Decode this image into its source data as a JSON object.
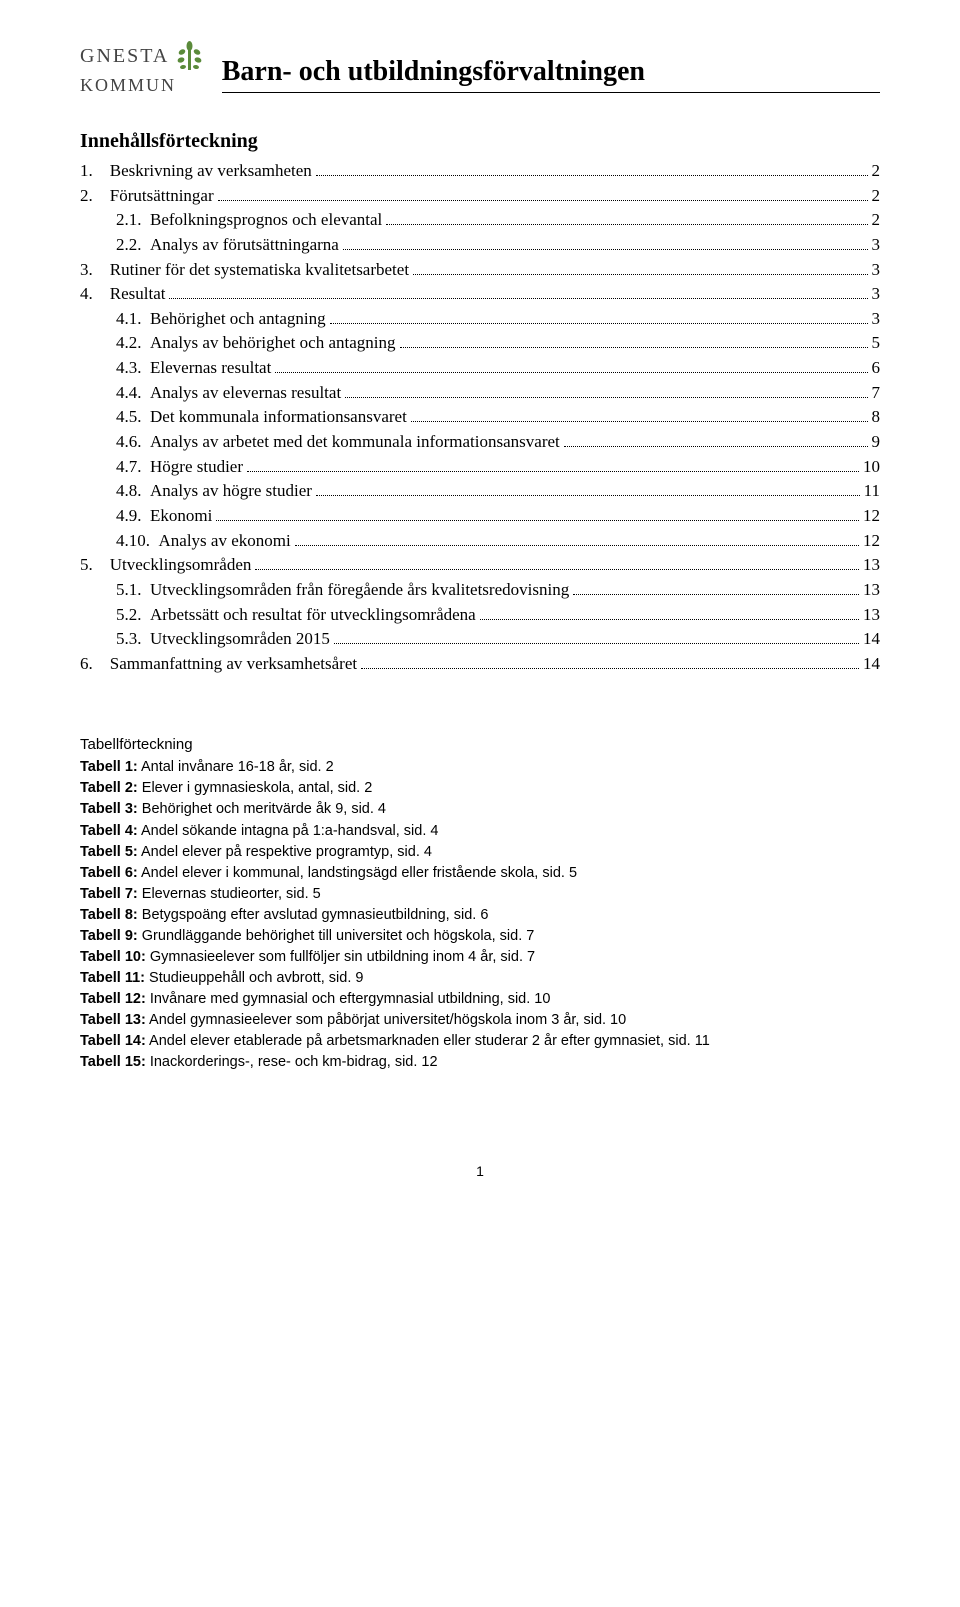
{
  "logo": {
    "line1": "GNESTA",
    "line2": "KOMMUN",
    "leaf_color": "#5a8a3a"
  },
  "header": {
    "title": "Barn- och utbildningsförvaltningen"
  },
  "toc": {
    "heading": "Innehållsförteckning",
    "items": [
      {
        "level": 1,
        "num": "1.",
        "title": "Beskrivning av verksamheten",
        "page": "2"
      },
      {
        "level": 1,
        "num": "2.",
        "title": "Förutsättningar",
        "page": "2"
      },
      {
        "level": 2,
        "num": "2.1.",
        "title": "Befolkningsprognos och elevantal",
        "page": "2"
      },
      {
        "level": 2,
        "num": "2.2.",
        "title": "Analys av förutsättningarna",
        "page": "3"
      },
      {
        "level": 1,
        "num": "3.",
        "title": "Rutiner för det systematiska kvalitetsarbetet",
        "page": "3"
      },
      {
        "level": 1,
        "num": "4.",
        "title": "Resultat",
        "page": "3"
      },
      {
        "level": 2,
        "num": "4.1.",
        "title": "Behörighet och antagning",
        "page": "3"
      },
      {
        "level": 2,
        "num": "4.2.",
        "title": "Analys av behörighet och antagning",
        "page": "5"
      },
      {
        "level": 2,
        "num": "4.3.",
        "title": "Elevernas resultat",
        "page": "6"
      },
      {
        "level": 2,
        "num": "4.4.",
        "title": "Analys av elevernas resultat",
        "page": "7"
      },
      {
        "level": 2,
        "num": "4.5.",
        "title": "Det kommunala informationsansvaret",
        "page": "8"
      },
      {
        "level": 2,
        "num": "4.6.",
        "title": "Analys av arbetet med det kommunala informationsansvaret",
        "page": "9"
      },
      {
        "level": 2,
        "num": "4.7.",
        "title": "Högre studier",
        "page": "10"
      },
      {
        "level": 2,
        "num": "4.8.",
        "title": "Analys av högre studier",
        "page": "11"
      },
      {
        "level": 2,
        "num": "4.9.",
        "title": "Ekonomi",
        "page": "12"
      },
      {
        "level": 2,
        "num": "4.10.",
        "title": "Analys av ekonomi",
        "page": "12"
      },
      {
        "level": 1,
        "num": "5.",
        "title": "Utvecklingsområden",
        "page": "13"
      },
      {
        "level": 2,
        "num": "5.1.",
        "title": "Utvecklingsområden från föregående års kvalitetsredovisning",
        "page": "13"
      },
      {
        "level": 2,
        "num": "5.2.",
        "title": "Arbetssätt och resultat för utvecklingsområdena",
        "page": "13"
      },
      {
        "level": 2,
        "num": "5.3.",
        "title": "Utvecklingsområden 2015",
        "page": "14"
      },
      {
        "level": 1,
        "num": "6.",
        "title": "Sammanfattning av verksamhetsåret",
        "page": "14"
      }
    ]
  },
  "tables": {
    "heading": "Tabellförteckning",
    "items": [
      {
        "label": "Tabell 1:",
        "text": " Antal invånare 16-18 år, sid. 2"
      },
      {
        "label": "Tabell 2:",
        "text": " Elever i gymnasieskola, antal, sid. 2"
      },
      {
        "label": "Tabell 3:",
        "text": " Behörighet och meritvärde åk 9, sid. 4"
      },
      {
        "label": "Tabell 4:",
        "text": " Andel sökande intagna på 1:a-handsval, sid. 4"
      },
      {
        "label": "Tabell 5:",
        "text": " Andel elever på respektive programtyp, sid. 4"
      },
      {
        "label": "Tabell 6:",
        "text": " Andel elever i kommunal, landstingsägd eller fristående skola, sid. 5"
      },
      {
        "label": "Tabell 7:",
        "text": " Elevernas studieorter, sid. 5"
      },
      {
        "label": "Tabell 8:",
        "text": " Betygspoäng efter avslutad gymnasieutbildning, sid. 6"
      },
      {
        "label": "Tabell 9:",
        "text": " Grundläggande behörighet till universitet och högskola, sid. 7"
      },
      {
        "label": "Tabell 10:",
        "text": " Gymnasieelever som fullföljer sin utbildning inom 4 år, sid. 7"
      },
      {
        "label": "Tabell 11:",
        "text": " Studieuppehåll och avbrott, sid. 9"
      },
      {
        "label": "Tabell 12:",
        "text": " Invånare med gymnasial och eftergymnasial utbildning, sid. 10"
      },
      {
        "label": "Tabell 13:",
        "text": " Andel gymnasieelever som påbörjat universitet/högskola inom 3 år, sid. 10"
      },
      {
        "label": "Tabell 14:",
        "text": " Andel elever etablerade på arbetsmarknaden eller studerar 2 år efter gymnasiet, sid. 11"
      },
      {
        "label": "Tabell 15:",
        "text": " Inackorderings-, rese- och km-bidrag, sid. 12"
      }
    ]
  },
  "footer": {
    "page_number": "1"
  }
}
